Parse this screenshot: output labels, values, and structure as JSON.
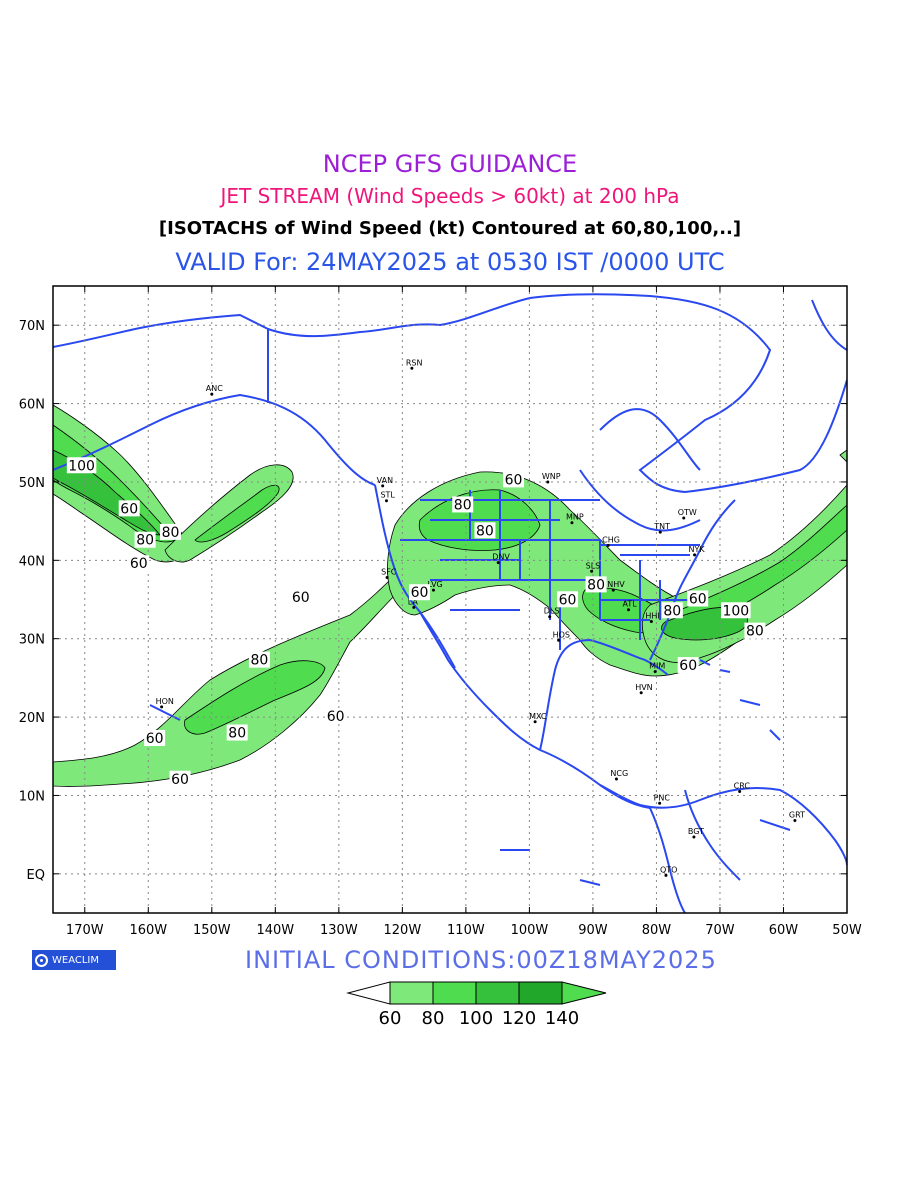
{
  "header": {
    "title": "NCEP GFS GUIDANCE",
    "subtitle": "JET STREAM (Wind Speeds > 60kt) at 200 hPa",
    "description": "[ISOTACHS of Wind Speed (kt) Contoured at 60,80,100,..]",
    "valid": "VALID For: 24MAY2025 at 0530 IST /0000 UTC"
  },
  "axes": {
    "lon_labels": [
      "170W",
      "160W",
      "150W",
      "140W",
      "130W",
      "120W",
      "110W",
      "100W",
      "90W",
      "80W",
      "70W",
      "60W",
      "50W"
    ],
    "lat_labels": [
      "70N",
      "60N",
      "50N",
      "40N",
      "30N",
      "20N",
      "10N",
      "EQ"
    ],
    "lon_range": [
      -175,
      -50
    ],
    "lat_range": [
      -5,
      75
    ],
    "grid": "dotted"
  },
  "cities": [
    {
      "name": "ANC",
      "lon": -150.0,
      "lat": 61.2
    },
    {
      "name": "RSN",
      "lon": -118.5,
      "lat": 64.5
    },
    {
      "name": "VAN",
      "lon": -123.1,
      "lat": 49.5
    },
    {
      "name": "STL",
      "lon": -122.5,
      "lat": 47.6
    },
    {
      "name": "WNP",
      "lon": -97.1,
      "lat": 50.0
    },
    {
      "name": "MNP",
      "lon": -93.3,
      "lat": 44.8
    },
    {
      "name": "OTW",
      "lon": -75.7,
      "lat": 45.4
    },
    {
      "name": "TNT",
      "lon": -79.4,
      "lat": 43.6
    },
    {
      "name": "CHG",
      "lon": -87.6,
      "lat": 41.9
    },
    {
      "name": "NYK",
      "lon": -74.0,
      "lat": 40.7
    },
    {
      "name": "SFC",
      "lon": -122.4,
      "lat": 37.8
    },
    {
      "name": "LVG",
      "lon": -115.1,
      "lat": 36.2
    },
    {
      "name": "LA",
      "lon": -118.2,
      "lat": 34.0
    },
    {
      "name": "DNV",
      "lon": -104.9,
      "lat": 39.7
    },
    {
      "name": "SLS",
      "lon": -90.2,
      "lat": 38.6
    },
    {
      "name": "NHV",
      "lon": -86.8,
      "lat": 36.2
    },
    {
      "name": "ATL",
      "lon": -84.4,
      "lat": 33.7
    },
    {
      "name": "DLS",
      "lon": -96.8,
      "lat": 32.8
    },
    {
      "name": "HHI",
      "lon": -80.8,
      "lat": 32.2
    },
    {
      "name": "HOS",
      "lon": -95.4,
      "lat": 29.8
    },
    {
      "name": "MIM",
      "lon": -80.2,
      "lat": 25.8
    },
    {
      "name": "HVN",
      "lon": -82.4,
      "lat": 23.1
    },
    {
      "name": "HON",
      "lon": -157.9,
      "lat": 21.3
    },
    {
      "name": "MXC",
      "lon": -99.1,
      "lat": 19.4
    },
    {
      "name": "NCG",
      "lon": -86.3,
      "lat": 12.1
    },
    {
      "name": "PNC",
      "lon": -79.5,
      "lat": 9.0
    },
    {
      "name": "CRC",
      "lon": -66.9,
      "lat": 10.5
    },
    {
      "name": "GRT",
      "lon": -58.2,
      "lat": 6.8
    },
    {
      "name": "BGT",
      "lon": -74.1,
      "lat": 4.7
    },
    {
      "name": "QTO",
      "lon": -78.5,
      "lat": -0.2
    }
  ],
  "contour_labels": [
    {
      "text": "100",
      "lon": -170.5,
      "lat": 52.0
    },
    {
      "text": "60",
      "lon": -163.0,
      "lat": 46.5
    },
    {
      "text": "80",
      "lon": -160.5,
      "lat": 42.5
    },
    {
      "text": "80",
      "lon": -156.5,
      "lat": 43.5
    },
    {
      "text": "60",
      "lon": -161.5,
      "lat": 39.5
    },
    {
      "text": "60",
      "lon": -136.0,
      "lat": 35.2
    },
    {
      "text": "60",
      "lon": -117.3,
      "lat": 35.8
    },
    {
      "text": "80",
      "lon": -110.5,
      "lat": 47.0
    },
    {
      "text": "60",
      "lon": -102.5,
      "lat": 50.2
    },
    {
      "text": "80",
      "lon": -107.0,
      "lat": 43.7
    },
    {
      "text": "60",
      "lon": -94.0,
      "lat": 34.9
    },
    {
      "text": "80",
      "lon": -89.5,
      "lat": 36.8
    },
    {
      "text": "80",
      "lon": -77.5,
      "lat": 33.5
    },
    {
      "text": "60",
      "lon": -73.5,
      "lat": 35.0
    },
    {
      "text": "100",
      "lon": -67.5,
      "lat": 33.5
    },
    {
      "text": "80",
      "lon": -64.5,
      "lat": 30.9
    },
    {
      "text": "60",
      "lon": -75.0,
      "lat": 26.5
    },
    {
      "text": "80",
      "lon": -142.5,
      "lat": 27.2
    },
    {
      "text": "60",
      "lon": -130.5,
      "lat": 20.0
    },
    {
      "text": "80",
      "lon": -146.0,
      "lat": 17.9
    },
    {
      "text": "60",
      "lon": -159.0,
      "lat": 17.2
    },
    {
      "text": "60",
      "lon": -155.0,
      "lat": 12.0
    }
  ],
  "legend": {
    "labels": [
      "60",
      "80",
      "100",
      "120",
      "140"
    ],
    "colors": [
      "#ffffff",
      "#7ee87a",
      "#4fdc4f",
      "#36c13c",
      "#21a82a",
      "#4fdc4f"
    ]
  },
  "footer": {
    "logo_text": "WEACLIM",
    "initial_conditions": "INITIAL  CONDITIONS:00Z18MAY2025"
  },
  "colors": {
    "coastline": "#2a48f0",
    "fill_60": "#7ee87a",
    "fill_80": "#4fdc4f",
    "fill_100": "#36c13c",
    "fill_120": "#21a82a"
  }
}
